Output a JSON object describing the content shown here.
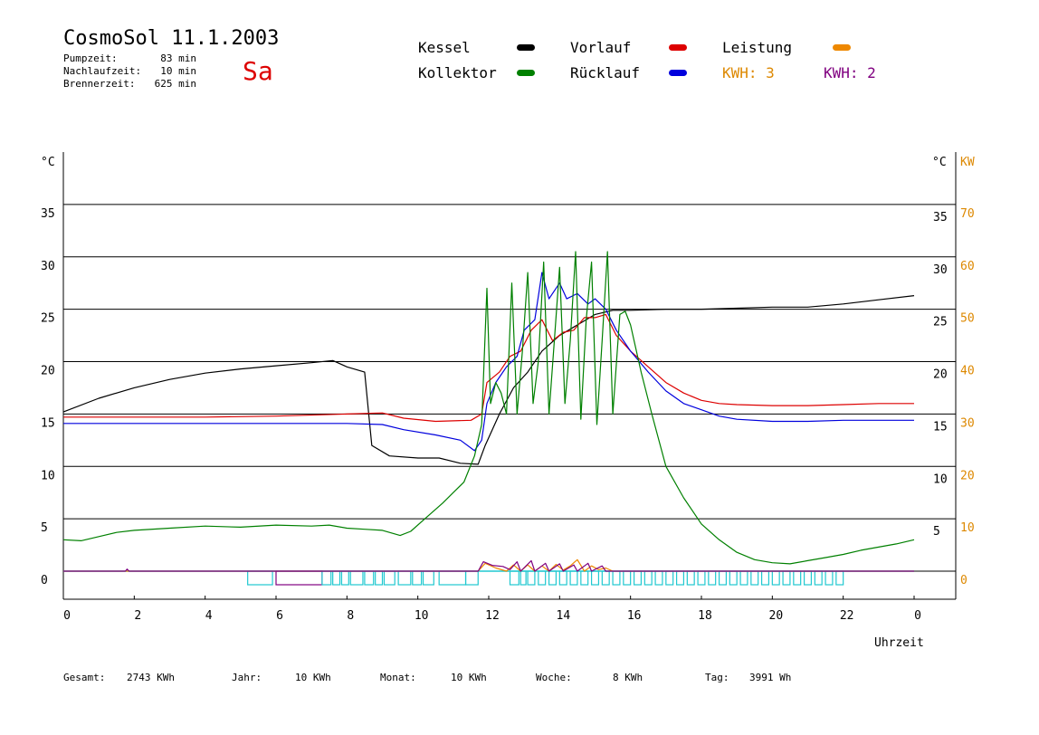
{
  "header": {
    "title": "CosmoSol 11.1.2003",
    "day": "Sa",
    "stats": [
      {
        "label": "Pumpzeit:",
        "value": "83 min"
      },
      {
        "label": "Nachlaufzeit:",
        "value": "10 min"
      },
      {
        "label": "Brennerzeit:",
        "value": "625 min"
      }
    ]
  },
  "legend": {
    "kessel": {
      "label": "Kessel",
      "color": "#000000"
    },
    "kollektor": {
      "label": "Kollektor",
      "color": "#008000"
    },
    "vorlauf": {
      "label": "Vorlauf",
      "color": "#dd0000"
    },
    "ruecklauf": {
      "label": "Rücklauf",
      "color": "#0000dd"
    },
    "leistung": {
      "label": "Leistung",
      "color": "#ee8800"
    },
    "kwh1": {
      "label": "KWH: 3",
      "color": "#dd8800"
    },
    "kwh2": {
      "label": "KWH: 2",
      "color": "#800080"
    }
  },
  "footer": {
    "gesamt_label": "Gesamt:",
    "gesamt_value": "2743 KWh",
    "jahr_label": "Jahr:",
    "jahr_value": "10 KWh",
    "monat_label": "Monat:",
    "monat_value": "10 KWh",
    "woche_label": "Woche:",
    "woche_value": "8 KWh",
    "tag_label": "Tag:",
    "tag_value": "3991 Wh"
  },
  "chart_data": {
    "type": "line",
    "xlabel": "Uhrzeit",
    "ylabel_left": "°C",
    "ylabel_right_temp": "°C",
    "ylabel_right_power": "KW",
    "xlim": [
      0,
      24
    ],
    "ylim": [
      0,
      40
    ],
    "grid": true,
    "x_ticks": [
      "0",
      "2",
      "4",
      "6",
      "8",
      "10",
      "12",
      "14",
      "16",
      "18",
      "20",
      "22",
      "0"
    ],
    "y_ticks_left": [
      "0",
      "5",
      "10",
      "15",
      "20",
      "25",
      "30",
      "35"
    ],
    "y_ticks_right_temp": [
      "5",
      "10",
      "15",
      "20",
      "25",
      "30",
      "35"
    ],
    "y_ticks_right_power": [
      "0",
      "10",
      "20",
      "30",
      "40",
      "50",
      "60",
      "70"
    ],
    "series": [
      {
        "name": "Kessel",
        "color": "#000000",
        "points": [
          [
            0,
            15.2
          ],
          [
            1,
            16.5
          ],
          [
            2,
            17.5
          ],
          [
            3,
            18.3
          ],
          [
            4,
            18.9
          ],
          [
            5,
            19.3
          ],
          [
            6,
            19.6
          ],
          [
            7,
            19.9
          ],
          [
            7.6,
            20.1
          ],
          [
            8,
            19.5
          ],
          [
            8.5,
            19.0
          ],
          [
            8.7,
            12
          ],
          [
            9.2,
            11
          ],
          [
            10,
            10.8
          ],
          [
            10.6,
            10.8
          ],
          [
            11.2,
            10.3
          ],
          [
            11.7,
            10.2
          ],
          [
            11.9,
            12
          ],
          [
            12.3,
            15
          ],
          [
            12.7,
            17.5
          ],
          [
            13.1,
            19
          ],
          [
            13.5,
            21
          ],
          [
            14,
            22.5
          ],
          [
            14.5,
            23.5
          ],
          [
            15,
            24.5
          ],
          [
            15.5,
            24.9
          ],
          [
            16,
            24.9
          ],
          [
            17,
            25
          ],
          [
            18,
            25
          ],
          [
            19,
            25.1
          ],
          [
            20,
            25.2
          ],
          [
            21,
            25.2
          ],
          [
            22,
            25.5
          ],
          [
            23,
            25.9
          ],
          [
            24,
            26.3
          ]
        ]
      },
      {
        "name": "Vorlauf",
        "color": "#dd0000",
        "points": [
          [
            0,
            14.7
          ],
          [
            2,
            14.7
          ],
          [
            4,
            14.7
          ],
          [
            6,
            14.8
          ],
          [
            8,
            15
          ],
          [
            9,
            15.1
          ],
          [
            9.6,
            14.6
          ],
          [
            10.5,
            14.3
          ],
          [
            11.5,
            14.4
          ],
          [
            11.8,
            15
          ],
          [
            11.95,
            18
          ],
          [
            12.3,
            19
          ],
          [
            12.6,
            20.5
          ],
          [
            12.9,
            21
          ],
          [
            13.2,
            23
          ],
          [
            13.5,
            24
          ],
          [
            13.8,
            22
          ],
          [
            14.1,
            22.8
          ],
          [
            14.4,
            23
          ],
          [
            14.7,
            24.2
          ],
          [
            15,
            24.2
          ],
          [
            15.3,
            24.5
          ],
          [
            15.6,
            22.5
          ],
          [
            16,
            21
          ],
          [
            16.5,
            19.5
          ],
          [
            17,
            18
          ],
          [
            17.5,
            17
          ],
          [
            18,
            16.3
          ],
          [
            18.5,
            16
          ],
          [
            19,
            15.9
          ],
          [
            20,
            15.8
          ],
          [
            21,
            15.8
          ],
          [
            22,
            15.9
          ],
          [
            23,
            16
          ],
          [
            24,
            16
          ]
        ]
      },
      {
        "name": "Rücklauf",
        "color": "#0000dd",
        "points": [
          [
            0,
            14.1
          ],
          [
            2,
            14.1
          ],
          [
            4,
            14.1
          ],
          [
            6,
            14.1
          ],
          [
            8,
            14.1
          ],
          [
            9,
            14
          ],
          [
            9.6,
            13.5
          ],
          [
            10.5,
            13
          ],
          [
            11.2,
            12.5
          ],
          [
            11.6,
            11.5
          ],
          [
            11.8,
            12.5
          ],
          [
            11.95,
            16
          ],
          [
            12.2,
            18
          ],
          [
            12.5,
            19.5
          ],
          [
            12.8,
            20.5
          ],
          [
            13,
            23
          ],
          [
            13.3,
            24
          ],
          [
            13.5,
            28.5
          ],
          [
            13.7,
            26
          ],
          [
            14,
            27.5
          ],
          [
            14.2,
            26
          ],
          [
            14.5,
            26.5
          ],
          [
            14.8,
            25.5
          ],
          [
            15,
            26
          ],
          [
            15.3,
            25
          ],
          [
            15.6,
            23
          ],
          [
            16,
            21
          ],
          [
            16.5,
            19
          ],
          [
            17,
            17.2
          ],
          [
            17.5,
            16
          ],
          [
            18,
            15.4
          ],
          [
            18.5,
            14.8
          ],
          [
            19,
            14.5
          ],
          [
            20,
            14.3
          ],
          [
            21,
            14.3
          ],
          [
            22,
            14.4
          ],
          [
            23,
            14.4
          ],
          [
            24,
            14.4
          ]
        ]
      },
      {
        "name": "Kollektor",
        "color": "#008000",
        "points": [
          [
            0,
            3
          ],
          [
            0.5,
            2.9
          ],
          [
            1,
            3.3
          ],
          [
            1.5,
            3.7
          ],
          [
            2,
            3.9
          ],
          [
            3,
            4.1
          ],
          [
            4,
            4.3
          ],
          [
            5,
            4.2
          ],
          [
            6,
            4.4
          ],
          [
            7,
            4.3
          ],
          [
            7.5,
            4.4
          ],
          [
            8,
            4.1
          ],
          [
            8.5,
            4
          ],
          [
            9,
            3.9
          ],
          [
            9.5,
            3.4
          ],
          [
            9.8,
            3.8
          ],
          [
            10.2,
            5
          ],
          [
            10.7,
            6.5
          ],
          [
            11,
            7.5
          ],
          [
            11.3,
            8.5
          ],
          [
            11.6,
            11
          ],
          [
            11.8,
            14
          ],
          [
            11.95,
            27
          ],
          [
            12.05,
            16
          ],
          [
            12.2,
            18
          ],
          [
            12.35,
            17
          ],
          [
            12.5,
            15
          ],
          [
            12.65,
            27.5
          ],
          [
            12.8,
            15
          ],
          [
            12.95,
            21
          ],
          [
            13.1,
            28.5
          ],
          [
            13.25,
            16
          ],
          [
            13.4,
            20
          ],
          [
            13.55,
            29.5
          ],
          [
            13.7,
            15
          ],
          [
            13.85,
            22
          ],
          [
            14,
            29
          ],
          [
            14.15,
            16
          ],
          [
            14.3,
            22
          ],
          [
            14.45,
            30.5
          ],
          [
            14.6,
            14.5
          ],
          [
            14.75,
            24
          ],
          [
            14.9,
            29.5
          ],
          [
            15.05,
            14
          ],
          [
            15.2,
            22
          ],
          [
            15.35,
            30.5
          ],
          [
            15.5,
            15
          ],
          [
            15.7,
            24.5
          ],
          [
            15.85,
            24.8
          ],
          [
            16,
            23.5
          ],
          [
            16.3,
            19
          ],
          [
            16.6,
            15
          ],
          [
            17,
            10
          ],
          [
            17.5,
            7
          ],
          [
            18,
            4.5
          ],
          [
            18.5,
            3
          ],
          [
            19,
            1.8
          ],
          [
            19.5,
            1.1
          ],
          [
            20,
            0.8
          ],
          [
            20.5,
            0.7
          ],
          [
            21,
            1
          ],
          [
            21.5,
            1.3
          ],
          [
            22,
            1.6
          ],
          [
            22.5,
            2
          ],
          [
            23,
            2.3
          ],
          [
            23.5,
            2.6
          ],
          [
            24,
            3
          ]
        ]
      },
      {
        "name": "Leistung",
        "color": "#ee8800",
        "axis": "power",
        "points": [
          [
            0,
            0
          ],
          [
            11.7,
            0
          ],
          [
            11.9,
            1.5
          ],
          [
            12.2,
            0.6
          ],
          [
            12.5,
            0
          ],
          [
            12.7,
            1.2
          ],
          [
            12.9,
            0
          ],
          [
            13.1,
            1.2
          ],
          [
            13.3,
            0
          ],
          [
            13.5,
            1.0
          ],
          [
            13.7,
            0
          ],
          [
            13.9,
            1.3
          ],
          [
            14.1,
            0.2
          ],
          [
            14.3,
            1.0
          ],
          [
            14.5,
            2.2
          ],
          [
            14.7,
            0
          ],
          [
            14.9,
            1.0
          ],
          [
            15.1,
            0.3
          ],
          [
            15.3,
            0.6
          ],
          [
            15.5,
            0
          ],
          [
            24,
            0
          ]
        ]
      },
      {
        "name": "KWH: 2",
        "color": "#800080",
        "axis": "power",
        "points": [
          [
            0,
            0
          ],
          [
            1.75,
            0
          ],
          [
            1.8,
            0.4
          ],
          [
            1.85,
            0
          ],
          [
            11.7,
            0
          ],
          [
            11.85,
            1.8
          ],
          [
            12.1,
            1.1
          ],
          [
            12.4,
            0.9
          ],
          [
            12.6,
            0.3
          ],
          [
            12.8,
            1.8
          ],
          [
            12.9,
            0
          ],
          [
            13.2,
            2.0
          ],
          [
            13.3,
            0
          ],
          [
            13.6,
            1.5
          ],
          [
            13.7,
            0
          ],
          [
            14,
            1.4
          ],
          [
            14.1,
            0
          ],
          [
            14.4,
            1.2
          ],
          [
            14.5,
            0
          ],
          [
            14.8,
            1.5
          ],
          [
            14.9,
            0
          ],
          [
            15.2,
            1.0
          ],
          [
            15.3,
            0
          ],
          [
            24,
            0
          ]
        ]
      }
    ],
    "pump_status": {
      "color": "#20c8d0",
      "color_alt": "#800080",
      "segments": [
        [
          5.2,
          5.9
        ],
        [
          6.0,
          7.3
        ],
        [
          7.3,
          7.55
        ],
        [
          7.6,
          7.8
        ],
        [
          7.85,
          8.05
        ],
        [
          8.1,
          8.45
        ],
        [
          8.5,
          8.75
        ],
        [
          8.8,
          9.0
        ],
        [
          9.05,
          9.35
        ],
        [
          9.45,
          9.8
        ],
        [
          9.85,
          10.1
        ],
        [
          10.15,
          10.45
        ],
        [
          10.6,
          11.35
        ],
        [
          11.35,
          11.7
        ],
        [
          12.6,
          12.85
        ],
        [
          12.9,
          13.05
        ],
        [
          13.1,
          13.3
        ],
        [
          13.4,
          13.6
        ],
        [
          13.7,
          13.9
        ],
        [
          14,
          14.2
        ],
        [
          14.3,
          14.5
        ],
        [
          14.6,
          14.8
        ],
        [
          14.9,
          15.1
        ],
        [
          15.2,
          15.4
        ],
        [
          15.5,
          15.7
        ],
        [
          15.8,
          16
        ],
        [
          16.1,
          16.3
        ],
        [
          16.4,
          16.6
        ],
        [
          16.7,
          16.9
        ],
        [
          17,
          17.2
        ],
        [
          17.3,
          17.5
        ],
        [
          17.6,
          17.8
        ],
        [
          17.9,
          18.1
        ],
        [
          18.2,
          18.4
        ],
        [
          18.5,
          18.7
        ],
        [
          18.8,
          19
        ],
        [
          19.1,
          19.3
        ],
        [
          19.4,
          19.6
        ],
        [
          19.7,
          19.9
        ],
        [
          20,
          20.2
        ],
        [
          20.3,
          20.5
        ],
        [
          20.6,
          20.8
        ],
        [
          20.9,
          21.1
        ],
        [
          21.2,
          21.4
        ],
        [
          21.5,
          21.7
        ],
        [
          21.8,
          22
        ]
      ]
    }
  }
}
